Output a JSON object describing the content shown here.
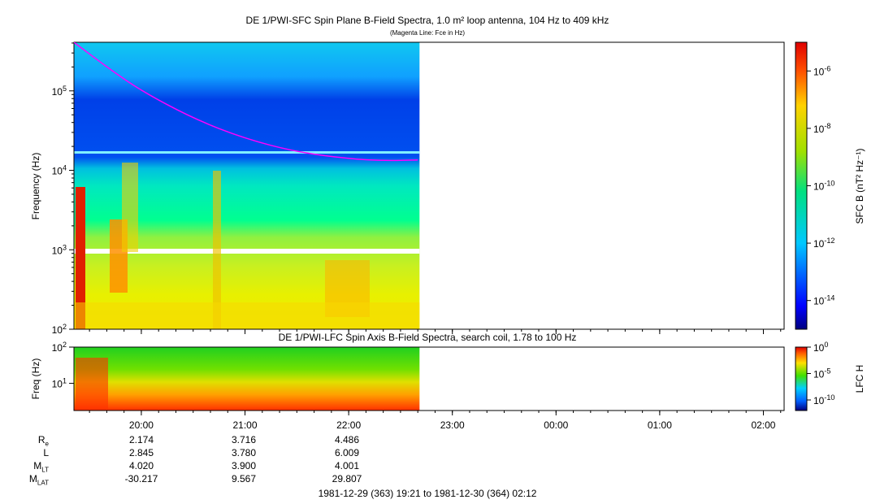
{
  "colors": {
    "magenta": "#ff00ff",
    "axis": "#000000",
    "background": "#ffffff"
  },
  "chart_data": [
    {
      "type": "heatmap",
      "title": "DE 1/PWI-SFC  Spin Plane B-Field Spectra, 1.0 m² loop antenna, 104 Hz to 409 kHz",
      "subtitle": "(Magenta Line: Fce in Hz)",
      "ylabel": "Frequency (Hz)",
      "yscale": "log",
      "ylim": [
        100,
        409000
      ],
      "y_ticks": [
        {
          "value": 100,
          "mantissa": "10",
          "exponent": "2"
        },
        {
          "value": 1000,
          "mantissa": "10",
          "exponent": "3"
        },
        {
          "value": 10000,
          "mantissa": "10",
          "exponent": "4"
        },
        {
          "value": 100000,
          "mantissa": "10",
          "exponent": "5"
        }
      ],
      "data_end_time": "22:41",
      "colorbar": {
        "label": "SFC B (nT² Hz⁻¹)",
        "scale": "log",
        "range": [
          1e-15,
          1e-05
        ],
        "ticks": [
          {
            "value": 1e-06,
            "mantissa": "10",
            "exponent": "-6"
          },
          {
            "value": 1e-08,
            "mantissa": "10",
            "exponent": "-8"
          },
          {
            "value": 1e-10,
            "mantissa": "10",
            "exponent": "-10"
          },
          {
            "value": 1e-12,
            "mantissa": "10",
            "exponent": "-12"
          },
          {
            "value": 1e-14,
            "mantissa": "10",
            "exponent": "-14"
          }
        ]
      },
      "fce_line": [
        {
          "t": "19:21",
          "f": 409000
        },
        {
          "t": "19:40",
          "f": 200000
        },
        {
          "t": "20:00",
          "f": 100000
        },
        {
          "t": "20:30",
          "f": 45000
        },
        {
          "t": "21:00",
          "f": 25000
        },
        {
          "t": "21:30",
          "f": 17000
        },
        {
          "t": "22:00",
          "f": 14000
        },
        {
          "t": "22:20",
          "f": 13200
        },
        {
          "t": "22:40",
          "f": 13500
        }
      ]
    },
    {
      "type": "heatmap",
      "title": "DE 1/PWI-LFC  Spin Axis B-Field Spectra, search coil, 1.78 to 100 Hz",
      "ylabel": "Freq (Hz)",
      "yscale": "log",
      "ylim": [
        1.78,
        100
      ],
      "y_ticks": [
        {
          "value": 10,
          "mantissa": "10",
          "exponent": "1"
        },
        {
          "value": 100,
          "mantissa": "10",
          "exponent": "2"
        }
      ],
      "data_end_time": "22:41",
      "colorbar": {
        "label": "LFC H",
        "scale": "log",
        "range": [
          1e-12,
          1
        ],
        "ticks": [
          {
            "value": 1,
            "mantissa": "10",
            "exponent": "0"
          },
          {
            "value": 1e-05,
            "mantissa": "10",
            "exponent": "-5"
          },
          {
            "value": 1e-10,
            "mantissa": "10",
            "exponent": "-10"
          }
        ]
      }
    }
  ],
  "time_axis": {
    "start": "19:21",
    "end": "02:12",
    "ticks": [
      "20:00",
      "21:00",
      "22:00",
      "23:00",
      "00:00",
      "01:00",
      "02:00"
    ]
  },
  "ephemeris": {
    "rows": [
      {
        "label": "R",
        "sub": "e",
        "values": [
          "2.174",
          "3.716",
          "4.486"
        ]
      },
      {
        "label": "L",
        "sub": "",
        "values": [
          "2.845",
          "3.780",
          "6.009"
        ]
      },
      {
        "label": "M",
        "sub": "LT",
        "values": [
          "4.020",
          "3.900",
          "4.001"
        ]
      },
      {
        "label": "M",
        "sub": "LAT",
        "values": [
          "-30.217",
          "9.567",
          "29.807"
        ]
      }
    ]
  },
  "footer": "1981-12-29 (363) 19:21 to 1981-12-30 (364) 02:12"
}
